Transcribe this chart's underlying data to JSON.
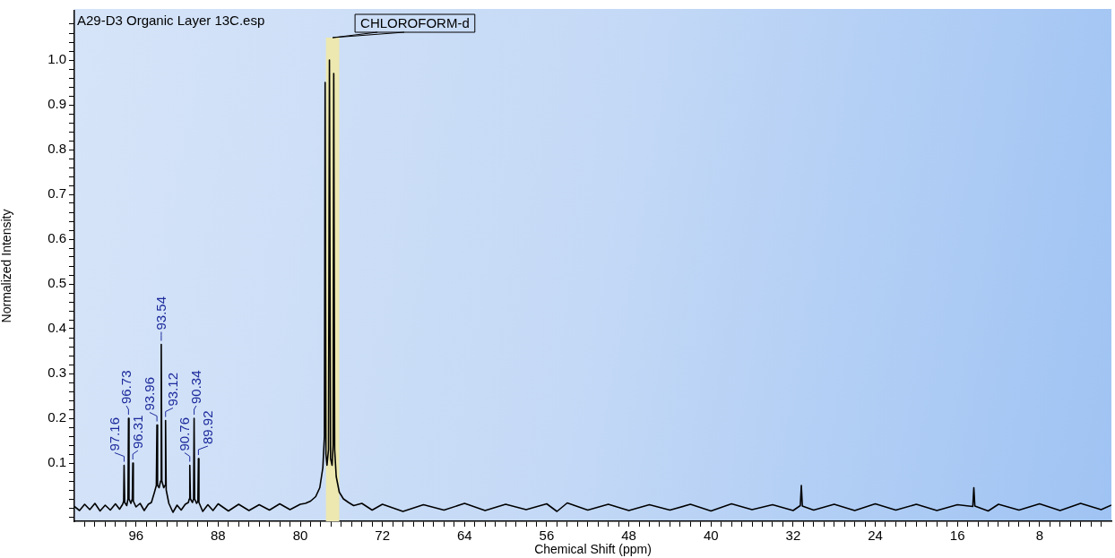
{
  "chart_data": {
    "type": "line",
    "title": "A29-D3 Organic Layer 13C.esp",
    "xlabel": "Chemical Shift (ppm)",
    "ylabel": "Normalized Intensity",
    "series": [
      {
        "color": "#000000",
        "x": [
          102,
          101.5,
          101,
          100.5,
          100,
          99.5,
          99,
          98.5,
          98,
          97.6,
          97.3,
          97.2,
          97.16,
          97.1,
          96.9,
          96.78,
          96.73,
          96.68,
          96.5,
          96.36,
          96.31,
          96.26,
          96,
          95.6,
          95.2,
          94.8,
          94.5,
          94.2,
          94.02,
          93.96,
          93.9,
          93.75,
          93.6,
          93.54,
          93.48,
          93.3,
          93.18,
          93.12,
          93.06,
          92.8,
          92.4,
          92,
          91.6,
          91.2,
          90.9,
          90.81,
          90.76,
          90.7,
          90.5,
          90.39,
          90.34,
          90.29,
          90.1,
          89.97,
          89.92,
          89.87,
          89.5,
          89,
          88.5,
          88,
          87,
          86,
          85,
          84,
          83,
          82,
          81,
          80,
          79.5,
          79,
          78.5,
          78.1,
          77.8,
          77.65,
          77.58,
          77.5,
          77.4,
          77.25,
          77.16,
          77.05,
          76.9,
          76.8,
          76.74,
          76.65,
          76.5,
          76.2,
          75.8,
          75.3,
          74.8,
          74,
          73,
          72,
          70,
          68,
          66,
          64,
          62,
          60,
          58,
          56,
          55,
          54,
          52,
          50,
          48,
          46,
          44,
          42,
          40,
          38,
          36,
          34,
          32,
          31.3,
          31.2,
          31.1,
          30,
          28,
          26,
          24,
          22,
          20,
          18,
          16,
          14.5,
          14.4,
          14.3,
          13,
          12,
          10,
          8,
          6,
          4,
          2,
          1
        ],
        "values": [
          0.003,
          -0.006,
          0.008,
          -0.004,
          0.01,
          -0.007,
          0.006,
          -0.005,
          0.009,
          -0.003,
          0.008,
          0.015,
          0.095,
          0.012,
          0.005,
          0.02,
          0.2,
          0.02,
          0.01,
          0.02,
          0.1,
          0.015,
          0.002,
          0.01,
          -0.006,
          0.008,
          0.012,
          0.035,
          0.05,
          0.185,
          0.05,
          0.045,
          0.06,
          0.365,
          0.06,
          0.045,
          0.05,
          0.195,
          0.04,
          0.01,
          -0.01,
          0.006,
          -0.005,
          0.008,
          0.012,
          0.02,
          0.095,
          0.02,
          0.012,
          0.02,
          0.2,
          0.02,
          0.01,
          0.015,
          0.11,
          0.012,
          -0.008,
          0.007,
          -0.006,
          0.009,
          -0.007,
          0.008,
          -0.006,
          0.007,
          -0.005,
          0.009,
          -0.004,
          0.008,
          0.01,
          0.015,
          0.025,
          0.045,
          0.09,
          0.16,
          0.95,
          0.12,
          0.095,
          0.13,
          1.0,
          0.11,
          0.095,
          0.14,
          0.97,
          0.13,
          0.07,
          0.035,
          0.02,
          0.012,
          0.005,
          0.01,
          -0.005,
          0.008,
          -0.008,
          0.007,
          -0.005,
          0.01,
          -0.006,
          0.008,
          -0.004,
          0.009,
          -0.008,
          0.011,
          -0.005,
          0.008,
          -0.006,
          0.007,
          -0.005,
          0.008,
          -0.007,
          0.009,
          -0.004,
          0.007,
          -0.006,
          0.005,
          0.05,
          0.004,
          -0.005,
          0.008,
          -0.006,
          0.009,
          -0.005,
          0.008,
          -0.006,
          0.007,
          0.003,
          0.045,
          0.004,
          -0.007,
          0.008,
          -0.005,
          0.009,
          -0.006,
          0.01,
          -0.004,
          0.006
        ]
      }
    ],
    "xlim": [
      102,
      1
    ],
    "xticks": [
      96,
      88,
      80,
      72,
      64,
      56,
      48,
      40,
      32,
      24,
      16,
      8,
      {
        "value": 101,
        "label": null
      },
      {
        "value": 100,
        "label": null
      },
      {
        "value": 99,
        "label": null
      },
      {
        "value": 98,
        "label": null
      },
      {
        "value": 97,
        "label": null
      },
      {
        "value": 95,
        "label": null
      },
      {
        "value": 94,
        "label": null
      },
      {
        "value": 93,
        "label": null
      },
      {
        "value": 92,
        "label": null
      },
      {
        "value": 91,
        "label": null
      },
      {
        "value": 90,
        "label": null
      },
      {
        "value": 89,
        "label": null
      },
      {
        "value": 87,
        "label": null
      },
      {
        "value": 86,
        "label": null
      },
      {
        "value": 85,
        "label": null
      },
      {
        "value": 84,
        "label": null
      },
      {
        "value": 83,
        "label": null
      },
      {
        "value": 82,
        "label": null
      },
      {
        "value": 81,
        "label": null
      },
      {
        "value": 79,
        "label": null
      },
      {
        "value": 78,
        "label": null
      },
      {
        "value": 77,
        "label": null
      },
      {
        "value": 76,
        "label": null
      },
      {
        "value": 75,
        "label": null
      },
      {
        "value": 74,
        "label": null
      },
      {
        "value": 73,
        "label": null
      },
      {
        "value": 71,
        "label": null
      },
      {
        "value": 70,
        "label": null
      },
      {
        "value": 69,
        "label": null
      },
      {
        "value": 68,
        "label": null
      },
      {
        "value": 67,
        "label": null
      },
      {
        "value": 66,
        "label": null
      },
      {
        "value": 65,
        "label": null
      },
      {
        "value": 63,
        "label": null
      },
      {
        "value": 62,
        "label": null
      },
      {
        "value": 61,
        "label": null
      },
      {
        "value": 60,
        "label": null
      },
      {
        "value": 59,
        "label": null
      },
      {
        "value": 58,
        "label": null
      },
      {
        "value": 57,
        "label": null
      },
      {
        "value": 55,
        "label": null
      },
      {
        "value": 54,
        "label": null
      },
      {
        "value": 53,
        "label": null
      },
      {
        "value": 52,
        "label": null
      },
      {
        "value": 51,
        "label": null
      },
      {
        "value": 50,
        "label": null
      },
      {
        "value": 49,
        "label": null
      },
      {
        "value": 47,
        "label": null
      },
      {
        "value": 46,
        "label": null
      },
      {
        "value": 45,
        "label": null
      },
      {
        "value": 44,
        "label": null
      },
      {
        "value": 43,
        "label": null
      },
      {
        "value": 42,
        "label": null
      },
      {
        "value": 41,
        "label": null
      },
      {
        "value": 39,
        "label": null
      },
      {
        "value": 38,
        "label": null
      },
      {
        "value": 37,
        "label": null
      },
      {
        "value": 36,
        "label": null
      },
      {
        "value": 35,
        "label": null
      },
      {
        "value": 34,
        "label": null
      },
      {
        "value": 33,
        "label": null
      },
      {
        "value": 31,
        "label": null
      },
      {
        "value": 30,
        "label": null
      },
      {
        "value": 29,
        "label": null
      },
      {
        "value": 28,
        "label": null
      },
      {
        "value": 27,
        "label": null
      },
      {
        "value": 26,
        "label": null
      },
      {
        "value": 25,
        "label": null
      },
      {
        "value": 23,
        "label": null
      },
      {
        "value": 22,
        "label": null
      },
      {
        "value": 21,
        "label": null
      },
      {
        "value": 20,
        "label": null
      },
      {
        "value": 19,
        "label": null
      },
      {
        "value": 18,
        "label": null
      },
      {
        "value": 17,
        "label": null
      },
      {
        "value": 15,
        "label": null
      },
      {
        "value": 14,
        "label": null
      },
      {
        "value": 13,
        "label": null
      },
      {
        "value": 12,
        "label": null
      },
      {
        "value": 11,
        "label": null
      },
      {
        "value": 10,
        "label": null
      },
      {
        "value": 9,
        "label": null
      },
      {
        "value": 7,
        "label": null
      },
      {
        "value": 6,
        "label": null
      },
      {
        "value": 5,
        "label": null
      },
      {
        "value": 4,
        "label": null
      },
      {
        "value": 3,
        "label": null
      },
      {
        "value": 2,
        "label": null
      }
    ],
    "ylim": [
      -0.03,
      1.11
    ],
    "yticks": [
      {
        "value": 0.1,
        "label": "0.1"
      },
      {
        "value": 0.2,
        "label": "0.2"
      },
      {
        "value": 0.3,
        "label": "0.3"
      },
      {
        "value": 0.4,
        "label": "0.4"
      },
      {
        "value": 0.5,
        "label": "0.5"
      },
      {
        "value": 0.6,
        "label": "0.6"
      },
      {
        "value": 0.7,
        "label": "0.7"
      },
      {
        "value": 0.8,
        "label": "0.8"
      },
      {
        "value": 0.9,
        "label": "0.9"
      },
      {
        "value": 1.0,
        "label": "1.0"
      },
      {
        "value": 0,
        "label": null
      },
      {
        "value": -0.02,
        "label": null
      },
      {
        "value": 0.02,
        "label": null
      },
      {
        "value": 0.04,
        "label": null
      },
      {
        "value": 0.06,
        "label": null
      },
      {
        "value": 0.08,
        "label": null
      },
      {
        "value": 0.12,
        "label": null
      },
      {
        "value": 0.14,
        "label": null
      },
      {
        "value": 0.16,
        "label": null
      },
      {
        "value": 0.18,
        "label": null
      },
      {
        "value": 0.22,
        "label": null
      },
      {
        "value": 0.24,
        "label": null
      },
      {
        "value": 0.26,
        "label": null
      },
      {
        "value": 0.28,
        "label": null
      },
      {
        "value": 0.32,
        "label": null
      },
      {
        "value": 0.34,
        "label": null
      },
      {
        "value": 0.36,
        "label": null
      },
      {
        "value": 0.38,
        "label": null
      },
      {
        "value": 0.42,
        "label": null
      },
      {
        "value": 0.44,
        "label": null
      },
      {
        "value": 0.46,
        "label": null
      },
      {
        "value": 0.48,
        "label": null
      },
      {
        "value": 0.52,
        "label": null
      },
      {
        "value": 0.54,
        "label": null
      },
      {
        "value": 0.56,
        "label": null
      },
      {
        "value": 0.58,
        "label": null
      },
      {
        "value": 0.62,
        "label": null
      },
      {
        "value": 0.64,
        "label": null
      },
      {
        "value": 0.66,
        "label": null
      },
      {
        "value": 0.68,
        "label": null
      },
      {
        "value": 0.72,
        "label": null
      },
      {
        "value": 0.74,
        "label": null
      },
      {
        "value": 0.76,
        "label": null
      },
      {
        "value": 0.78,
        "label": null
      },
      {
        "value": 0.82,
        "label": null
      },
      {
        "value": 0.84,
        "label": null
      },
      {
        "value": 0.86,
        "label": null
      },
      {
        "value": 0.88,
        "label": null
      },
      {
        "value": 0.92,
        "label": null
      },
      {
        "value": 0.94,
        "label": null
      },
      {
        "value": 0.96,
        "label": null
      },
      {
        "value": 0.98,
        "label": null
      },
      {
        "value": 1.02,
        "label": null
      },
      {
        "value": 1.04,
        "label": null
      },
      {
        "value": 1.06,
        "label": null
      },
      {
        "value": 1.08,
        "label": null
      }
    ],
    "bands": [
      {
        "axis": "x",
        "from": 77.5,
        "to": 76.2,
        "label": "CHLOROFORM-d",
        "color": "#ece8b0"
      }
    ],
    "annotations": [
      {
        "text": "97.16",
        "x": 97.16,
        "y": 0.095
      },
      {
        "text": "96.73",
        "x": 96.73,
        "y": 0.2
      },
      {
        "text": "96.31",
        "x": 96.31,
        "y": 0.1
      },
      {
        "text": "93.96",
        "x": 93.96,
        "y": 0.185
      },
      {
        "text": "93.54",
        "x": 93.54,
        "y": 0.365
      },
      {
        "text": "93.12",
        "x": 93.12,
        "y": 0.195
      },
      {
        "text": "90.76",
        "x": 90.76,
        "y": 0.095
      },
      {
        "text": "90.34",
        "x": 90.34,
        "y": 0.2
      },
      {
        "text": "89.92",
        "x": 89.92,
        "y": 0.11
      }
    ],
    "grid": false,
    "legend": false,
    "marker": "none",
    "line_style": "solid"
  }
}
